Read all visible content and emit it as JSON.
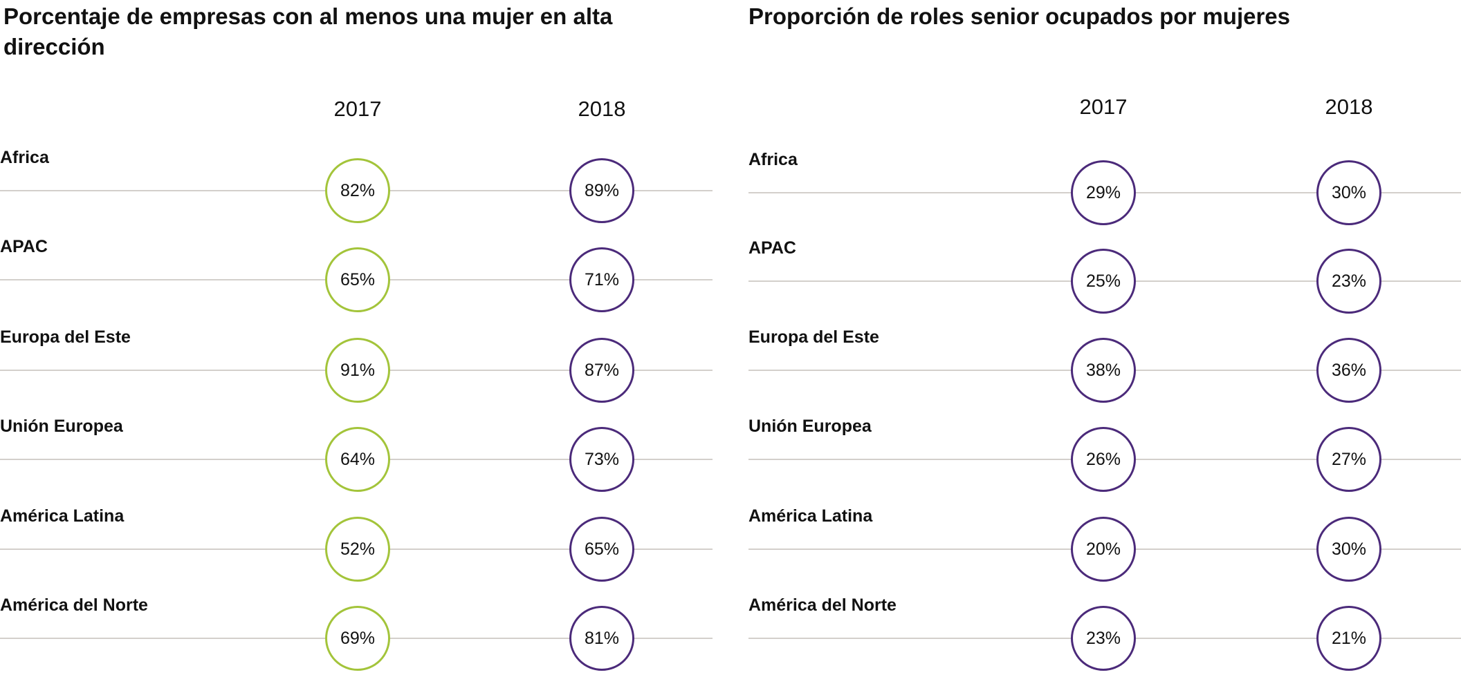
{
  "colors": {
    "2017_left": "#a3c43a",
    "purple": "#4b2a7a",
    "rule": "#d3cfcb"
  },
  "chart_data": [
    {
      "type": "table",
      "title": "Porcentaje de empresas con al menos una mujer en alta dirección",
      "columns": [
        "2017",
        "2018"
      ],
      "categories": [
        "Africa",
        "APAC",
        "Europa del Este",
        "Unión Europea",
        "América Latina",
        "América del Norte"
      ],
      "series": [
        {
          "name": "2017",
          "values": [
            82,
            65,
            91,
            64,
            52,
            69
          ],
          "color": "#a3c43a"
        },
        {
          "name": "2018",
          "values": [
            89,
            71,
            87,
            73,
            65,
            81
          ],
          "color": "#4b2a7a"
        }
      ]
    },
    {
      "type": "table",
      "title": "Proporción de roles senior ocupados por mujeres",
      "columns": [
        "2017",
        "2018"
      ],
      "categories": [
        "Africa",
        "APAC",
        "Europa del Este",
        "Unión Europea",
        "América Latina",
        "América del Norte"
      ],
      "series": [
        {
          "name": "2017",
          "values": [
            29,
            25,
            38,
            26,
            20,
            23
          ],
          "color": "#4b2a7a"
        },
        {
          "name": "2018",
          "values": [
            30,
            23,
            36,
            27,
            30,
            21
          ],
          "color": "#4b2a7a"
        }
      ]
    }
  ]
}
